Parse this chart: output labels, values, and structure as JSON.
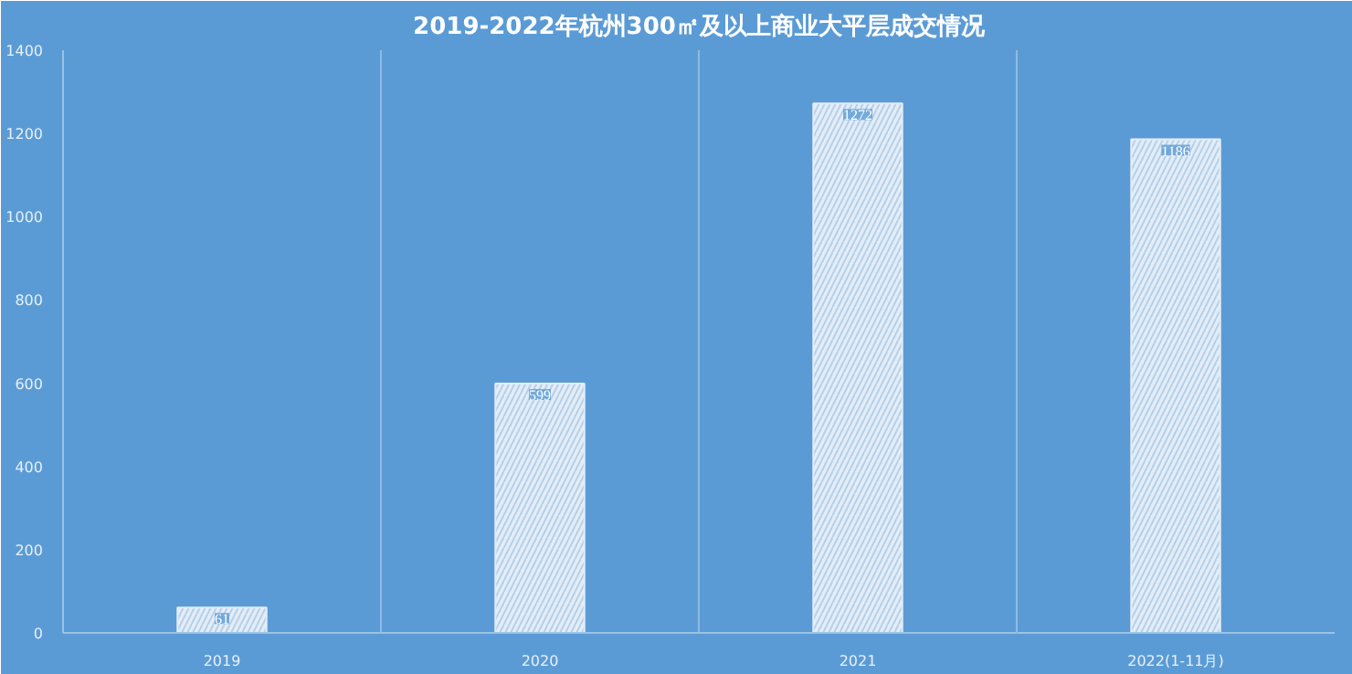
{
  "chart_data": {
    "type": "bar",
    "title": "2019-2022年杭州300㎡及以上商业大平层成交情况",
    "categories": [
      "2019",
      "2020",
      "2021",
      "2022(1-11月)"
    ],
    "values": [
      61,
      599,
      1272,
      1186
    ],
    "color": "#e4edf6",
    "ylim": [
      0,
      1400
    ],
    "yticks": [
      0,
      200,
      400,
      600,
      800,
      1000,
      1200,
      1400
    ],
    "grid": "x",
    "data_labels": true
  }
}
